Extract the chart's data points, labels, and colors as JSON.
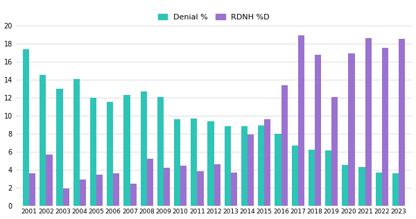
{
  "years": [
    2001,
    2002,
    2003,
    2004,
    2005,
    2006,
    2007,
    2008,
    2009,
    2010,
    2011,
    2012,
    2013,
    2014,
    2015,
    2016,
    2017,
    2018,
    2019,
    2020,
    2021,
    2022,
    2023
  ],
  "denial": [
    17.4,
    14.5,
    13.0,
    14.1,
    12.0,
    11.5,
    12.3,
    12.7,
    12.1,
    9.6,
    9.7,
    9.4,
    8.8,
    8.8,
    8.9,
    8.0,
    6.7,
    6.2,
    6.1,
    4.5,
    4.3,
    3.7,
    3.6
  ],
  "rdnh": [
    3.6,
    5.7,
    1.9,
    2.9,
    3.4,
    3.6,
    2.4,
    5.2,
    4.2,
    4.4,
    3.8,
    4.6,
    3.7,
    7.9,
    9.6,
    13.4,
    18.9,
    16.8,
    12.1,
    16.9,
    18.6,
    17.5,
    18.5
  ],
  "denial_color": "#2ec4b6",
  "rdnh_color": "#9b72cf",
  "bg_color": "#ffffff",
  "grid_color": "#e0e0e0",
  "ylim": [
    0,
    20
  ],
  "yticks": [
    0,
    2,
    4,
    6,
    8,
    10,
    12,
    14,
    16,
    18,
    20
  ],
  "legend_labels": [
    "Denial %",
    "RDNH %D"
  ],
  "bar_width": 0.38,
  "figsize": [
    6.0,
    3.16
  ],
  "dpi": 100
}
